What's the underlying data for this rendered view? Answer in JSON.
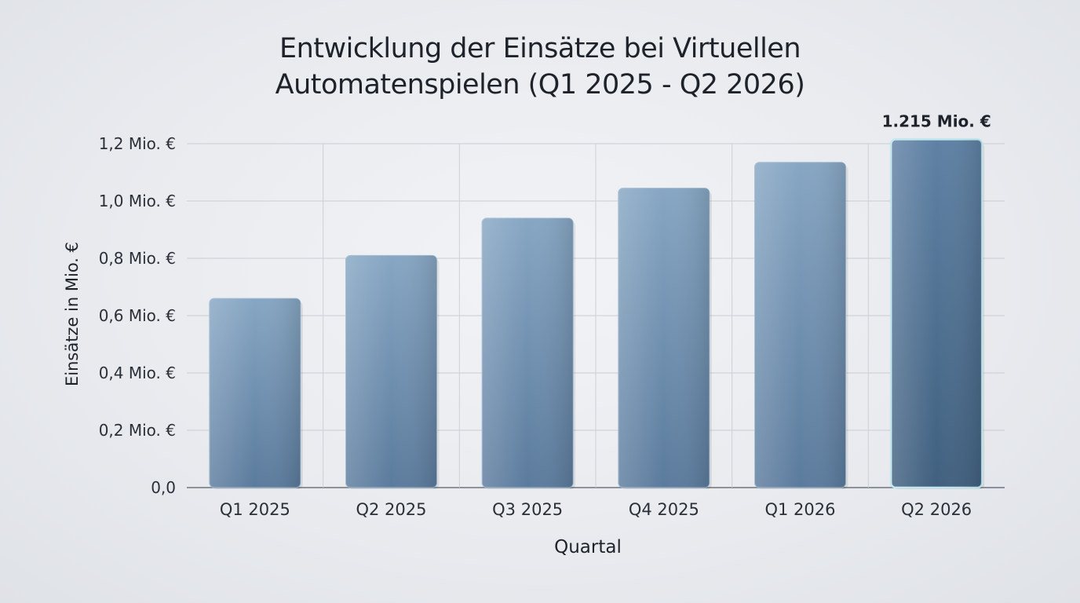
{
  "title_lines": [
    "Entwicklung der Einsätze bei Virtuellen",
    "Automatenspielen (Q1 2025 - Q2 2026)"
  ],
  "chart_data": {
    "type": "bar",
    "title": "Entwicklung der Einsätze bei Virtuellen Automatenspielen (Q1 2025 - Q2 2026)",
    "xlabel": "Quartal",
    "ylabel": "Einsätze in Mio. €",
    "categories": [
      "Q1 2025",
      "Q2 2025",
      "Q3 2025",
      "Q4 2025",
      "Q1 2026",
      "Q2 2026"
    ],
    "values": [
      0.66,
      0.81,
      0.94,
      1.045,
      1.135,
      1.215
    ],
    "ylim": [
      0,
      1.2
    ],
    "yticks": [
      0,
      0.2,
      0.4,
      0.6,
      0.8,
      1.0,
      1.2
    ],
    "ytick_labels": [
      "0,0",
      "0,2 Mio. €",
      "0,4 Mio. €",
      "0,6 Mio. €",
      "0,8 Mio. €",
      "1,0 Mio. €",
      "1,2 Mio. €"
    ],
    "annotations": [
      {
        "category": "Q2 2026",
        "text": "1.215 Mio. €"
      }
    ],
    "grid": true,
    "colors": {
      "bar_light": "#86a6c3",
      "bar_dark": "#4d6e91",
      "highlight": "#bfe6ee"
    }
  }
}
